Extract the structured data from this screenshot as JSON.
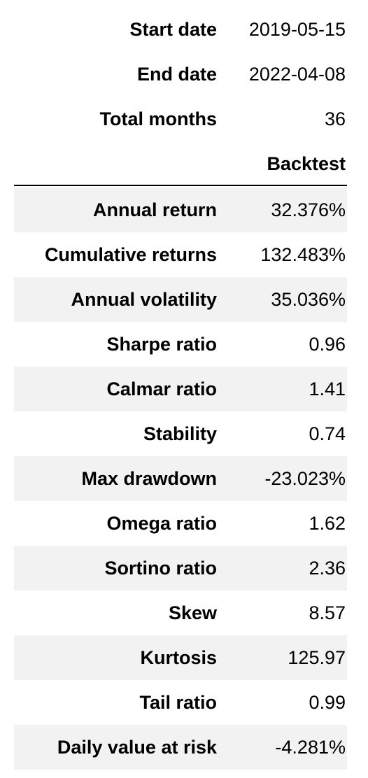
{
  "meta": [
    {
      "label": "Start date",
      "value": "2019-05-15"
    },
    {
      "label": "End date",
      "value": "2022-04-08"
    },
    {
      "label": "Total months",
      "value": "36"
    }
  ],
  "column_header": "Backtest",
  "rows": [
    {
      "label": "Annual return",
      "value": "32.376%"
    },
    {
      "label": "Cumulative returns",
      "value": "132.483%"
    },
    {
      "label": "Annual volatility",
      "value": "35.036%"
    },
    {
      "label": "Sharpe ratio",
      "value": "0.96"
    },
    {
      "label": "Calmar ratio",
      "value": "1.41"
    },
    {
      "label": "Stability",
      "value": "0.74"
    },
    {
      "label": "Max drawdown",
      "value": "-23.023%"
    },
    {
      "label": "Omega ratio",
      "value": "1.62"
    },
    {
      "label": "Sortino ratio",
      "value": "2.36"
    },
    {
      "label": "Skew",
      "value": "8.57"
    },
    {
      "label": "Kurtosis",
      "value": "125.97"
    },
    {
      "label": "Tail ratio",
      "value": "0.99"
    },
    {
      "label": "Daily value at risk",
      "value": "-4.281%"
    }
  ],
  "colors": {
    "alt_row_background": "#f2f2f2",
    "header_rule": "#000000"
  }
}
